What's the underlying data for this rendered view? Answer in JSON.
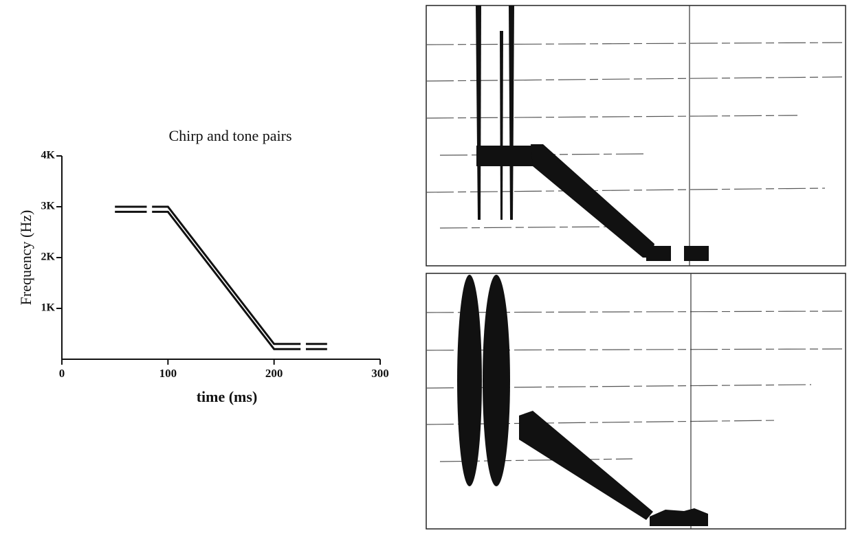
{
  "chart_data": {
    "type": "line",
    "title": "Chirp and tone pairs",
    "x_label": "time (ms)",
    "y_label": "Frequency (Hz)",
    "xlim": [
      0,
      300
    ],
    "xticks": [
      0,
      100,
      200,
      300
    ],
    "ylim": [
      0,
      4000
    ],
    "yticks": [
      {
        "value": 1000,
        "label": "1K"
      },
      {
        "value": 2000,
        "label": "2K"
      },
      {
        "value": 3000,
        "label": "3K"
      },
      {
        "value": 4000,
        "label": "4K"
      }
    ],
    "series": [
      {
        "color": "#111111",
        "x": [
          50,
          80,
          null,
          85,
          100,
          200,
          225,
          null,
          230,
          250
        ],
        "values": [
          3000,
          3000,
          null,
          3000,
          3000,
          300,
          300,
          null,
          300,
          300
        ]
      },
      {
        "color": "#111111",
        "x": [
          50,
          80,
          null,
          85,
          100,
          200,
          225,
          null,
          230,
          250
        ],
        "values": [
          2900,
          2900,
          null,
          2900,
          2900,
          200,
          200,
          null,
          200,
          200
        ]
      }
    ]
  }
}
